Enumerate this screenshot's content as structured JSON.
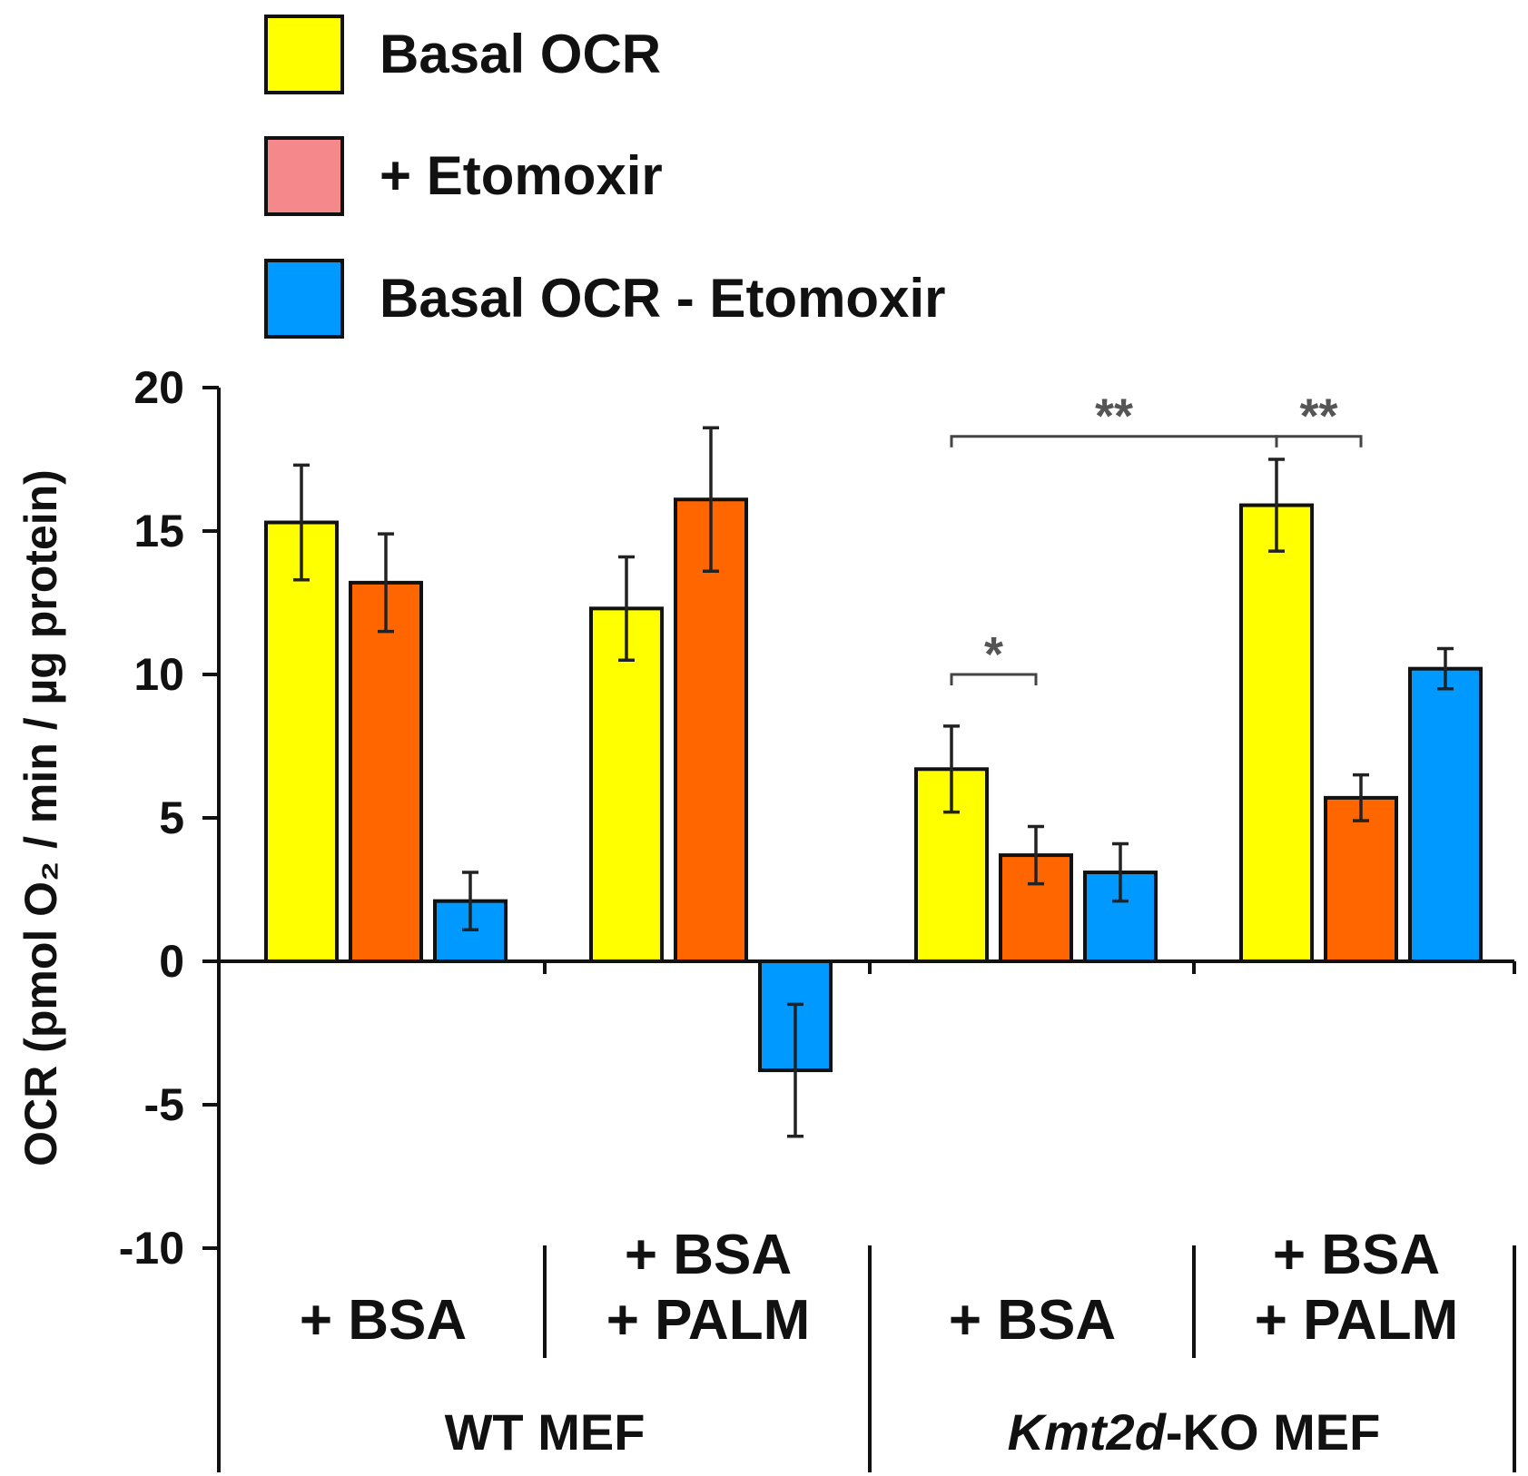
{
  "chart_data": {
    "type": "bar",
    "ylabel": "OCR (pmol O₂ / min / µg protein)",
    "ylim": [
      -10,
      20
    ],
    "yticks": [
      20,
      15,
      10,
      5,
      0,
      -5,
      -10
    ],
    "grid": false,
    "legend_position": "top-left",
    "categories": [
      "+ BSA",
      "+ BSA\n+ PALM",
      "+ BSA",
      "+ BSA\n+ PALM"
    ],
    "category_lines": [
      [
        "+ BSA"
      ],
      [
        "+ BSA",
        "+ PALM"
      ],
      [
        "+ BSA"
      ],
      [
        "+ BSA",
        "+ PALM"
      ]
    ],
    "groups": [
      {
        "label": "WT MEF",
        "italic_part": "",
        "rest": "WT MEF",
        "categories": [
          0,
          1
        ]
      },
      {
        "label": "Kmt2d-KO MEF",
        "italic_part": "Kmt2d",
        "rest": "-KO MEF",
        "categories": [
          2,
          3
        ]
      }
    ],
    "series": [
      {
        "name": "Basal OCR",
        "color": "#FFFF00",
        "values": [
          15.3,
          12.3,
          6.7,
          15.9
        ],
        "errors": [
          2.0,
          1.8,
          1.5,
          1.6
        ]
      },
      {
        "name": "+ Etomoxir",
        "color": "#FF6600",
        "legend_color": "#F4888A",
        "values": [
          13.2,
          16.1,
          3.7,
          5.7
        ],
        "errors": [
          1.7,
          2.5,
          1.0,
          0.8
        ]
      },
      {
        "name": "Basal OCR - Etomoxir",
        "color": "#0099FF",
        "values": [
          2.1,
          -3.8,
          3.1,
          10.2
        ],
        "errors": [
          1.0,
          2.3,
          1.0,
          0.7
        ]
      }
    ],
    "significance": [
      {
        "label": "*",
        "from": {
          "category": 2,
          "series": 0
        },
        "to": {
          "category": 2,
          "series": 1
        },
        "y": 10.0
      },
      {
        "label": "**",
        "from": {
          "category": 2,
          "series": 0
        },
        "to": {
          "category": 3,
          "series": 0
        },
        "y": 18.3
      },
      {
        "label": "**",
        "from": {
          "category": 3,
          "series": 0
        },
        "to": {
          "category": 3,
          "series": 1
        },
        "y": 18.3
      }
    ]
  }
}
